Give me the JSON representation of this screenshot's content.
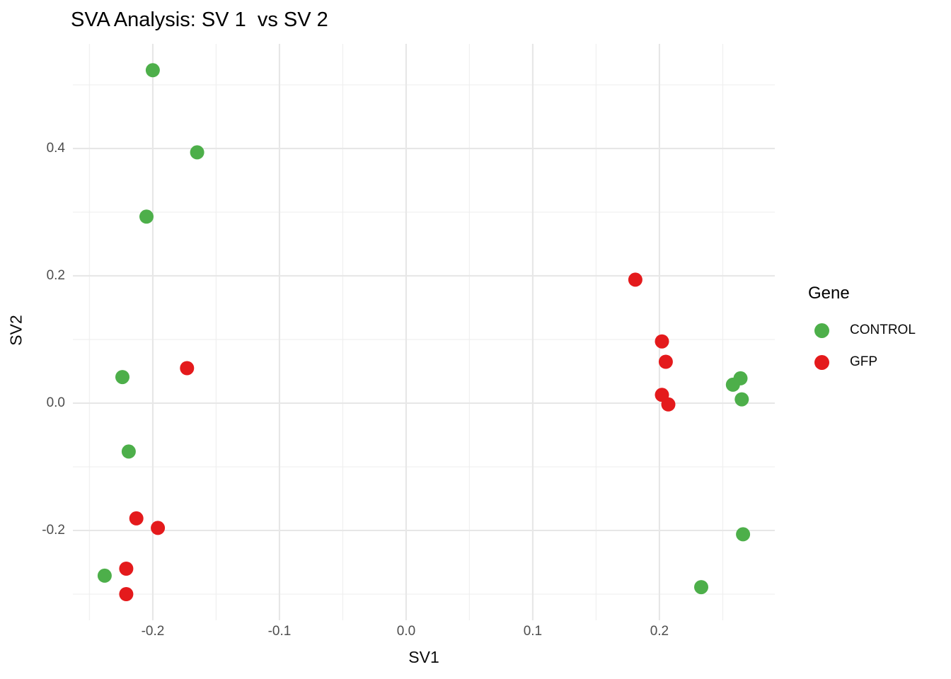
{
  "chart_data": {
    "type": "scatter",
    "title": "SVA Analysis: SV 1  vs SV 2",
    "xlabel": "SV1",
    "ylabel": "SV2",
    "legend_title": "Gene",
    "legend_position": "right",
    "grid": true,
    "background_color": "#FFFFFF",
    "major_grid_color": "#E7E7E7",
    "minor_grid_color": "#F0F0F0",
    "tick_label_color": "#4D4D4D",
    "xlim": [
      -0.2631,
      0.2911
    ],
    "ylim": [
      -0.3411,
      0.5644
    ],
    "x_ticks": [
      -0.2,
      -0.1,
      0.0,
      0.1,
      0.2
    ],
    "x_tick_labels": [
      "-0.2",
      "-0.1",
      "0.0",
      "0.1",
      "0.2"
    ],
    "x_minor_ticks": [
      -0.25,
      -0.15,
      -0.05,
      0.05,
      0.15,
      0.25
    ],
    "y_ticks": [
      -0.2,
      0.0,
      0.2,
      0.4
    ],
    "y_tick_labels": [
      "-0.2",
      "0.0",
      "0.2",
      "0.4"
    ],
    "y_minor_ticks": [
      -0.3,
      -0.1,
      0.1,
      0.3,
      0.5
    ],
    "point_radius_px": 10,
    "series": [
      {
        "name": "CONTROL",
        "color": "#4DAF4A",
        "points": [
          [
            -0.2,
            0.523
          ],
          [
            -0.165,
            0.394
          ],
          [
            -0.205,
            0.293
          ],
          [
            -0.224,
            0.041
          ],
          [
            -0.219,
            -0.076
          ],
          [
            -0.238,
            -0.271
          ],
          [
            0.258,
            0.029
          ],
          [
            0.264,
            0.039
          ],
          [
            0.265,
            0.006
          ],
          [
            0.266,
            -0.206
          ],
          [
            0.233,
            -0.289
          ]
        ]
      },
      {
        "name": "GFP",
        "color": "#E41A1C",
        "points": [
          [
            -0.173,
            0.055
          ],
          [
            -0.213,
            -0.181
          ],
          [
            -0.196,
            -0.196
          ],
          [
            -0.221,
            -0.26
          ],
          [
            -0.221,
            -0.3
          ],
          [
            0.181,
            0.194
          ],
          [
            0.202,
            0.097
          ],
          [
            0.205,
            0.065
          ],
          [
            0.202,
            0.013
          ],
          [
            0.207,
            -0.002
          ]
        ]
      }
    ]
  }
}
